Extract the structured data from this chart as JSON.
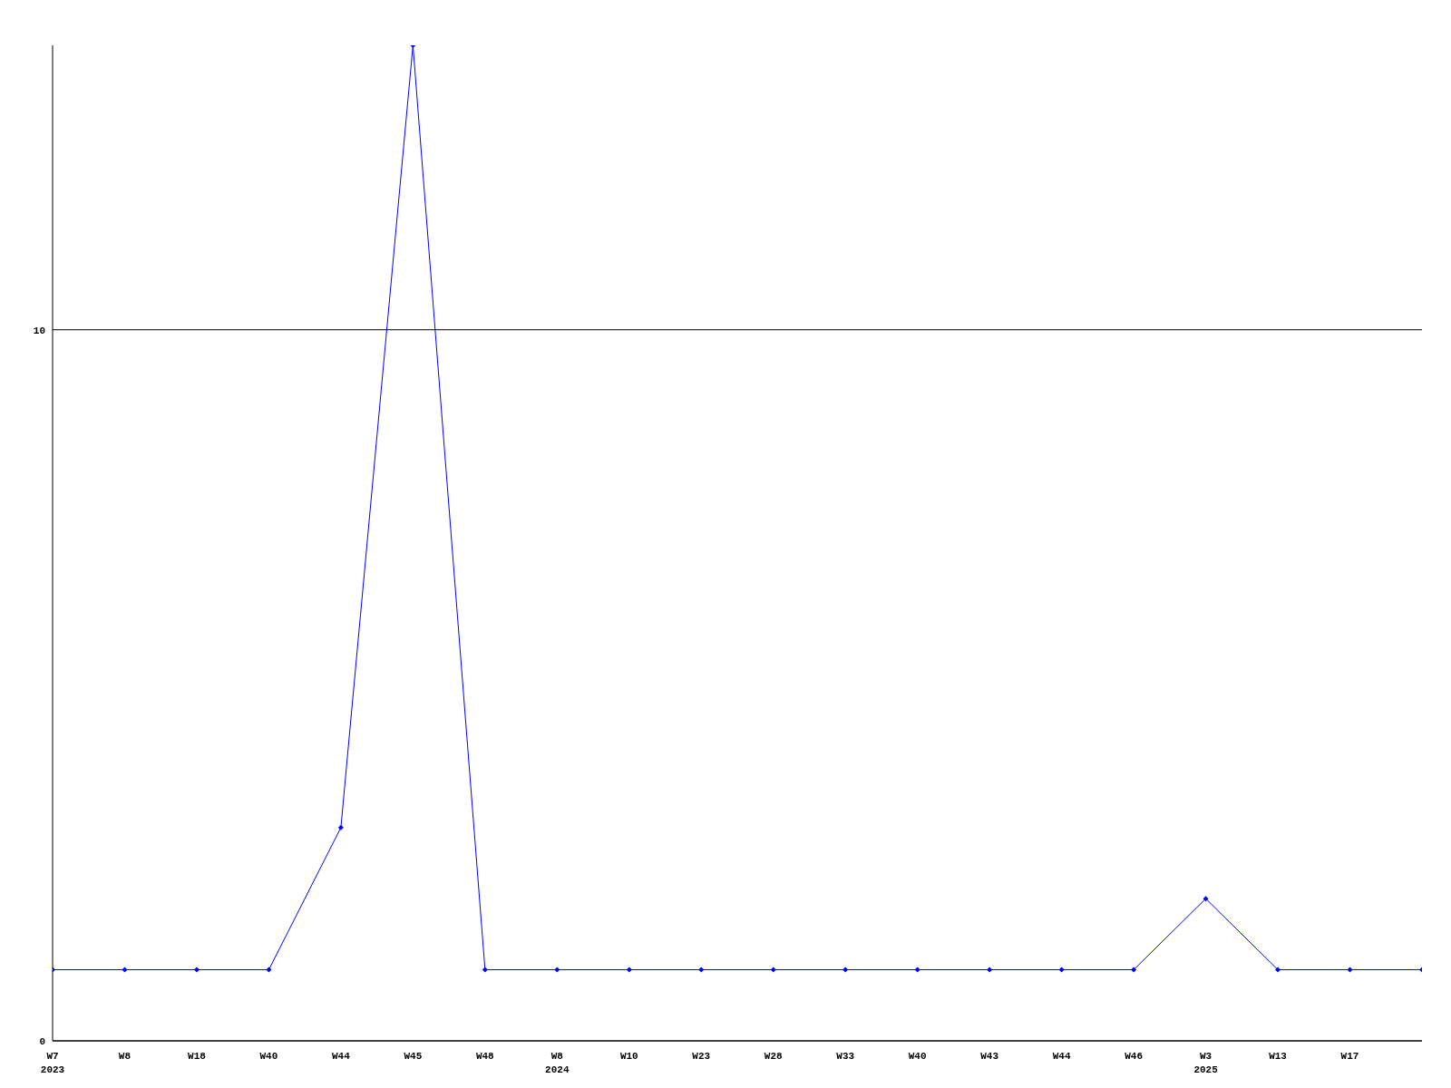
{
  "chart_data": {
    "type": "line",
    "categories": [
      "W7\n2023",
      "W8",
      "W18",
      "W40",
      "W44",
      "W45",
      "W48",
      "W8\n2024",
      "W10",
      "W23",
      "W28",
      "W33",
      "W40",
      "W43",
      "W44",
      "W46",
      "W3\n2025",
      "W13",
      "W17",
      null
    ],
    "series": [
      {
        "color": "#0000ff",
        "values": [
          1,
          1,
          1,
          1,
          3,
          14,
          1,
          1,
          1,
          1,
          1,
          1,
          1,
          1,
          1,
          1,
          2,
          1,
          1,
          1
        ]
      }
    ],
    "ylim": [
      0,
      14
    ],
    "yticks": [
      0,
      10
    ],
    "grid": "y",
    "marker": "diamond",
    "line_style": "solid"
  }
}
